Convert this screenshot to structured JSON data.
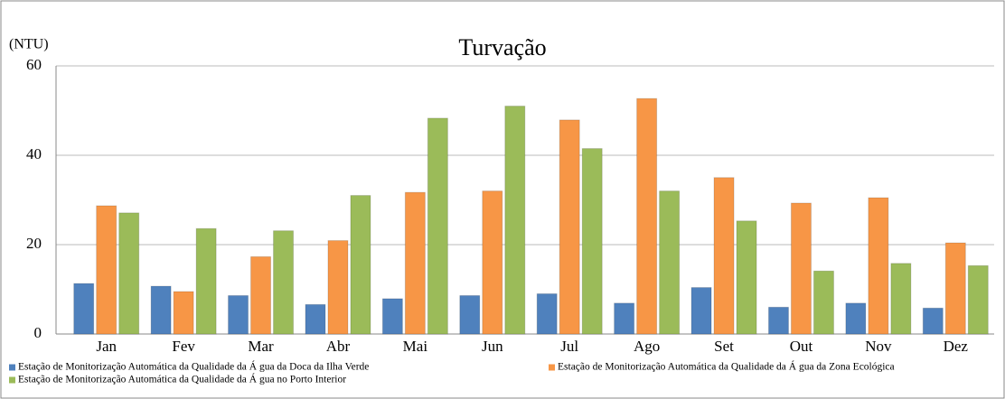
{
  "chart_data": {
    "type": "bar",
    "title": "Turvação",
    "y_label": "(NTU)",
    "categories": [
      "Jan",
      "Fev",
      "Mar",
      "Abr",
      "Mai",
      "Jun",
      "Jul",
      "Ago",
      "Set",
      "Out",
      "Nov",
      "Dez"
    ],
    "series": [
      {
        "name": "Estação de Monitorização Automática da Qualidade da Á gua da Doca da Ilha Verde",
        "color": "#4f81bd",
        "values": [
          11.3,
          10.7,
          8.6,
          6.6,
          7.9,
          8.6,
          9.0,
          6.9,
          10.4,
          6.0,
          6.9,
          5.8
        ]
      },
      {
        "name": "Estação de Monitorização Automática da Qualidade da Á gua da Zona Ecológica",
        "color": "#f79646",
        "values": [
          28.7,
          9.5,
          17.3,
          20.9,
          31.7,
          32.0,
          47.9,
          52.7,
          35.0,
          29.3,
          30.5,
          20.4
        ]
      },
      {
        "name": "Estação de Monitorização Automática da Qualidade da Á gua no Porto Interior",
        "color": "#9bbb59",
        "values": [
          27.1,
          23.6,
          23.1,
          31.0,
          48.3,
          51.0,
          41.5,
          32.0,
          25.3,
          14.1,
          15.8,
          15.3
        ]
      }
    ],
    "ylim": [
      0,
      60
    ],
    "yticks": [
      0,
      20,
      40,
      60
    ],
    "grid": true
  }
}
